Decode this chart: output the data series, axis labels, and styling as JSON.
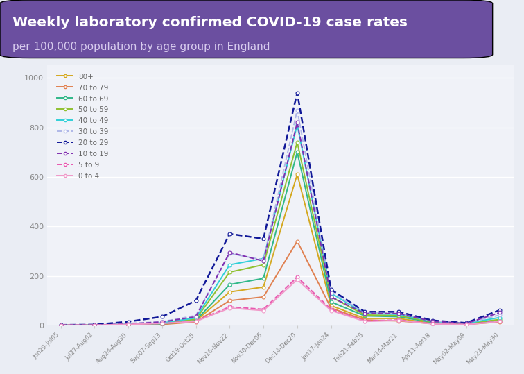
{
  "title_line1": "Weekly laboratory confirmed COVID-19 case rates",
  "title_line2": "per 100,000 population by age group in England",
  "title_bg_color": "#6b4fa0",
  "chart_bg_color": "#eaedf4",
  "plot_bg_color": "#f0f2f8",
  "x_labels": [
    "Jun29-Jul05",
    "Jul27-Aug02",
    "Aug24-Aug30",
    "Sep07-Sep13",
    "Oct19-Oct25",
    "Nov16-Nov22",
    "Nov30-Dec06",
    "Dec14-Dec20",
    "Jan17-Jan24",
    "Feb21-Feb28",
    "Mar14-Mar21",
    "Apr11-Apr18",
    "May02-May09",
    "May23-May30"
  ],
  "age_groups": [
    "80+",
    "70 to 79",
    "60 to 69",
    "50 to 59",
    "40 to 49",
    "30 to 39",
    "20 to 29",
    "10 to 19",
    "5 to 9",
    "0 to 4"
  ],
  "colors": {
    "80+": "#d4a820",
    "70 to 79": "#e08050",
    "60 to 69": "#30b888",
    "50 to 59": "#90c030",
    "40 to 49": "#30d0d8",
    "30 to 39": "#b0b8e8",
    "20 to 29": "#101898",
    "10 to 19": "#8030b0",
    "5 to 9": "#e858b0",
    "0 to 4": "#f098c8"
  },
  "linestyles": {
    "80+": "solid",
    "70 to 79": "solid",
    "60 to 69": "solid",
    "50 to 59": "solid",
    "40 to 49": "solid",
    "30 to 39": "dashed",
    "20 to 29": "dashed",
    "10 to 19": "dashed",
    "5 to 9": "dashed",
    "0 to 4": "solid"
  },
  "data": {
    "80+": [
      1,
      1,
      2,
      5,
      18,
      135,
      155,
      610,
      80,
      28,
      28,
      8,
      5,
      18
    ],
    "70 to 79": [
      1,
      1,
      2,
      4,
      14,
      100,
      115,
      340,
      70,
      22,
      18,
      7,
      4,
      14
    ],
    "60 to 69": [
      1,
      1,
      3,
      6,
      20,
      165,
      190,
      700,
      95,
      38,
      35,
      12,
      6,
      20
    ],
    "50 to 59": [
      1,
      1,
      4,
      8,
      25,
      215,
      245,
      740,
      115,
      42,
      40,
      14,
      7,
      24
    ],
    "40 to 49": [
      1,
      1,
      5,
      10,
      30,
      245,
      270,
      810,
      130,
      48,
      45,
      16,
      8,
      32
    ],
    "30 to 39": [
      1,
      1,
      8,
      15,
      40,
      290,
      265,
      870,
      135,
      52,
      50,
      18,
      9,
      42
    ],
    "20 to 29": [
      2,
      3,
      15,
      35,
      100,
      370,
      350,
      940,
      145,
      55,
      55,
      20,
      10,
      62
    ],
    "10 to 19": [
      1,
      1,
      6,
      14,
      35,
      295,
      260,
      820,
      115,
      48,
      48,
      16,
      8,
      52
    ],
    "5 to 9": [
      1,
      1,
      4,
      8,
      18,
      75,
      65,
      195,
      65,
      18,
      22,
      7,
      4,
      18
    ],
    "0 to 4": [
      1,
      1,
      4,
      8,
      16,
      70,
      60,
      185,
      60,
      16,
      20,
      6,
      3,
      16
    ]
  },
  "ylim": [
    0,
    1050
  ],
  "yticks": [
    0,
    200,
    400,
    600,
    800,
    1000
  ]
}
